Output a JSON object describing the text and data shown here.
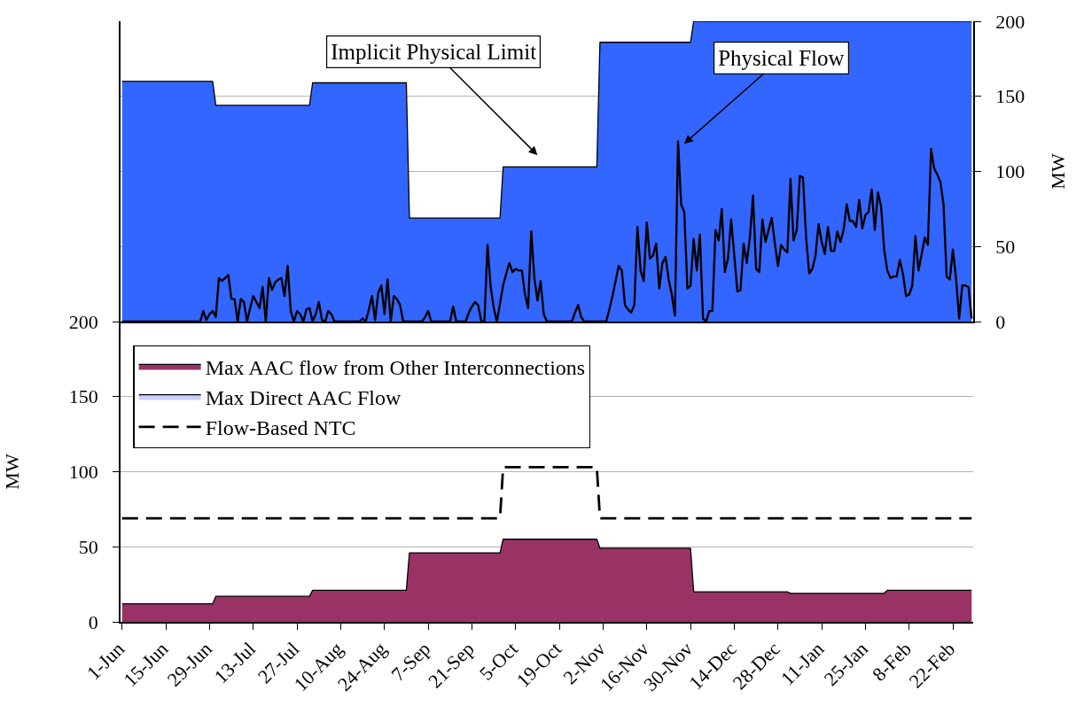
{
  "chart_data": [
    {
      "type": "area",
      "categories": [
        null,
        null,
        null,
        null,
        null,
        null,
        null,
        null,
        null,
        null,
        null,
        null,
        null,
        null,
        null,
        null,
        null,
        null,
        null,
        null,
        null,
        null,
        null,
        null,
        null,
        null,
        null,
        null,
        null,
        null,
        null,
        null,
        null,
        null,
        null,
        null,
        null,
        null,
        null,
        null,
        null,
        null,
        null,
        null,
        null,
        null,
        null,
        null,
        null,
        null,
        null,
        null,
        null,
        null,
        null,
        null,
        null,
        null,
        null,
        null,
        null,
        null,
        null,
        null,
        null,
        null,
        null,
        null,
        null,
        null,
        null,
        null,
        null,
        null,
        null,
        null,
        null,
        null,
        null,
        null,
        null,
        null,
        null,
        null,
        null,
        null,
        null,
        null,
        null,
        null,
        null,
        null,
        null,
        null,
        null,
        null,
        null,
        null,
        null,
        null,
        null,
        null,
        null,
        null,
        null,
        null,
        null,
        null,
        null,
        null,
        null,
        null,
        null,
        null,
        null,
        null,
        null,
        null,
        null,
        null,
        null,
        null,
        null,
        null,
        null,
        null,
        null,
        null,
        null,
        null,
        null,
        null,
        null,
        null,
        null,
        null,
        null,
        null,
        null,
        null,
        null,
        null,
        null,
        null,
        null,
        null,
        null,
        null,
        null,
        null,
        null,
        null,
        null,
        null,
        null,
        null,
        null,
        null,
        null,
        null,
        null,
        null,
        null,
        null,
        null,
        null,
        null,
        null,
        null,
        null,
        null,
        null,
        null,
        null,
        null,
        null,
        null,
        null,
        null,
        null,
        null,
        null,
        null,
        null,
        null,
        null,
        null,
        null,
        null,
        null,
        null,
        null,
        null,
        null,
        null,
        null,
        null,
        null,
        null,
        null,
        null,
        null,
        null,
        null,
        null,
        null,
        null,
        null,
        null,
        null,
        null,
        null,
        null,
        null,
        null,
        null,
        null,
        null,
        null,
        null,
        null,
        null,
        null,
        null,
        null,
        null,
        null,
        null,
        null,
        null,
        null,
        null,
        null,
        null,
        null,
        null,
        null,
        null,
        null,
        null,
        null,
        null,
        null,
        null,
        null,
        null,
        null,
        null,
        null,
        null,
        null,
        null,
        null,
        null,
        null,
        null,
        null,
        null,
        null,
        null,
        null,
        null,
        null,
        null,
        null,
        null,
        null,
        null,
        null,
        null,
        null,
        null,
        null
      ],
      "ylim": [
        0,
        200
      ],
      "yticks": [
        0,
        50,
        100,
        150,
        200
      ],
      "ylabel": "MW",
      "grid": "y",
      "series": [
        {
          "color": "#3366ff",
          "values": [
            160,
            160,
            160,
            160,
            160,
            160,
            160,
            160,
            160,
            160,
            160,
            160,
            160,
            160,
            160,
            160,
            160,
            160,
            160,
            160,
            160,
            160,
            160,
            160,
            160,
            160,
            160,
            160,
            160,
            160,
            144,
            144,
            144,
            144,
            144,
            144,
            144,
            144,
            144,
            144,
            144,
            144,
            144,
            144,
            144,
            144,
            144,
            144,
            144,
            144,
            144,
            144,
            144,
            144,
            144,
            144,
            144,
            144,
            144,
            144,
            144,
            159,
            159,
            159,
            159,
            159,
            159,
            159,
            159,
            159,
            159,
            159,
            159,
            159,
            159,
            159,
            159,
            159,
            159,
            159,
            159,
            159,
            159,
            159,
            159,
            159,
            159,
            159,
            159,
            159,
            159,
            159,
            69,
            69,
            69,
            69,
            69,
            69,
            69,
            69,
            69,
            69,
            69,
            69,
            69,
            69,
            69,
            69,
            69,
            69,
            69,
            69,
            69,
            69,
            69,
            69,
            69,
            69,
            69,
            69,
            69,
            69,
            103,
            103,
            103,
            103,
            103,
            103,
            103,
            103,
            103,
            103,
            103,
            103,
            103,
            103,
            103,
            103,
            103,
            103,
            103,
            103,
            103,
            103,
            103,
            103,
            103,
            103,
            103,
            103,
            103,
            103,
            103,
            186,
            186,
            186,
            186,
            186,
            186,
            186,
            186,
            186,
            186,
            186,
            186,
            186,
            186,
            186,
            186,
            186,
            186,
            186,
            186,
            186,
            186,
            186,
            186,
            186,
            186,
            186,
            186,
            186,
            186,
            200,
            200,
            200,
            200,
            200,
            200,
            200,
            200,
            200,
            200,
            200,
            200,
            200,
            200,
            200,
            200,
            200,
            200,
            200,
            200,
            200,
            200,
            200,
            200,
            200,
            200,
            200,
            200,
            200,
            200,
            200,
            200,
            200,
            200,
            200,
            200,
            200,
            200,
            200,
            200,
            200,
            200,
            200,
            200,
            200,
            200,
            200,
            200,
            200,
            200,
            200,
            200,
            200,
            200,
            200,
            200,
            200,
            200,
            200,
            200,
            200,
            200,
            200,
            200,
            200,
            200,
            200,
            200,
            200,
            200,
            200,
            200,
            200,
            200,
            200,
            200,
            200,
            200,
            200,
            200,
            200,
            200,
            200,
            200,
            200,
            200,
            200,
            200,
            200,
            200
          ]
        },
        {
          "type": "line",
          "color": "#000000",
          "values": [
            0,
            0,
            0,
            0,
            0,
            0,
            0,
            0,
            0,
            0,
            0,
            0,
            0,
            0,
            0,
            0,
            0,
            0,
            0,
            0,
            0,
            0,
            0,
            0,
            0,
            0,
            7,
            1,
            5,
            7,
            3,
            29,
            27,
            29,
            31,
            15,
            15,
            0,
            15,
            13,
            0,
            9,
            17,
            13,
            9,
            23,
            0,
            29,
            21,
            26,
            28,
            29,
            17,
            37,
            7,
            0,
            7,
            5,
            0,
            8,
            9,
            0,
            5,
            13,
            1,
            0,
            7,
            5,
            0,
            0,
            0,
            0,
            0,
            0,
            0,
            0,
            0,
            2,
            0,
            8,
            17,
            1,
            19,
            24,
            5,
            28,
            0,
            17,
            15,
            11,
            0,
            0,
            0,
            0,
            0,
            0,
            0,
            3,
            7,
            0,
            0,
            0,
            0,
            0,
            0,
            0,
            10,
            0,
            0,
            0,
            0,
            6,
            10,
            13,
            11,
            0,
            0,
            51,
            23,
            9,
            0,
            12,
            24,
            32,
            39,
            33,
            35,
            34,
            34,
            18,
            9,
            60,
            29,
            14,
            27,
            5,
            0,
            0,
            0,
            0,
            0,
            0,
            0,
            0,
            0,
            6,
            11,
            3,
            0,
            0,
            0,
            0,
            0,
            0,
            0,
            0,
            8,
            17,
            27,
            37,
            34,
            11,
            8,
            6,
            11,
            63,
            34,
            27,
            66,
            42,
            44,
            52,
            22,
            39,
            43,
            28,
            18,
            4,
            120,
            78,
            73,
            22,
            24,
            55,
            34,
            58,
            2,
            0,
            7,
            7,
            61,
            54,
            75,
            33,
            42,
            68,
            44,
            20,
            21,
            52,
            39,
            56,
            84,
            35,
            33,
            68,
            53,
            61,
            69,
            52,
            37,
            51,
            48,
            46,
            95,
            54,
            61,
            97,
            96,
            56,
            32,
            35,
            44,
            65,
            53,
            45,
            63,
            47,
            47,
            60,
            53,
            61,
            78,
            67,
            67,
            63,
            81,
            62,
            71,
            73,
            88,
            61,
            86,
            77,
            48,
            34,
            29,
            30,
            30,
            41,
            32,
            17,
            18,
            24,
            57,
            34,
            45,
            56,
            51,
            115,
            102,
            98,
            93,
            78,
            30,
            28,
            48,
            29,
            2,
            24,
            24,
            23,
            2
          ]
        }
      ],
      "annotations": [
        "Implicit Physical Limit",
        "Physical Flow"
      ]
    },
    {
      "type": "area",
      "categories": [
        "1-Jun",
        null,
        null,
        null,
        null,
        null,
        null,
        null,
        null,
        null,
        null,
        null,
        null,
        null,
        "15-Jun",
        null,
        null,
        null,
        null,
        null,
        null,
        null,
        null,
        null,
        null,
        null,
        null,
        null,
        "29-Jun",
        null,
        null,
        null,
        null,
        null,
        null,
        null,
        null,
        null,
        null,
        null,
        null,
        null,
        "13-Jul",
        null,
        null,
        null,
        null,
        null,
        null,
        null,
        null,
        null,
        null,
        null,
        null,
        null,
        "27-Jul",
        null,
        null,
        null,
        null,
        null,
        null,
        null,
        null,
        null,
        null,
        null,
        null,
        null,
        "10-Aug",
        null,
        null,
        null,
        null,
        null,
        null,
        null,
        null,
        null,
        null,
        null,
        null,
        null,
        "24-Aug",
        null,
        null,
        null,
        null,
        null,
        null,
        null,
        null,
        null,
        null,
        null,
        null,
        null,
        "7-Sep",
        null,
        null,
        null,
        null,
        null,
        null,
        null,
        null,
        null,
        null,
        null,
        null,
        null,
        "21-Sep",
        null,
        null,
        null,
        null,
        null,
        null,
        null,
        null,
        null,
        null,
        null,
        null,
        null,
        "5-Oct",
        null,
        null,
        null,
        null,
        null,
        null,
        null,
        null,
        null,
        null,
        null,
        null,
        null,
        "19-Oct",
        null,
        null,
        null,
        null,
        null,
        null,
        null,
        null,
        null,
        null,
        null,
        null,
        null,
        "2-Nov",
        null,
        null,
        null,
        null,
        null,
        null,
        null,
        null,
        null,
        null,
        null,
        null,
        null,
        "16-Nov",
        null,
        null,
        null,
        null,
        null,
        null,
        null,
        null,
        null,
        null,
        null,
        null,
        null,
        "30-Nov",
        null,
        null,
        null,
        null,
        null,
        null,
        null,
        null,
        null,
        null,
        null,
        null,
        null,
        "14-Dec",
        null,
        null,
        null,
        null,
        null,
        null,
        null,
        null,
        null,
        null,
        null,
        null,
        null,
        "28-Dec",
        null,
        null,
        null,
        null,
        null,
        null,
        null,
        null,
        null,
        null,
        null,
        null,
        null,
        "11-Jan",
        null,
        null,
        null,
        null,
        null,
        null,
        null,
        null,
        null,
        null,
        null,
        null,
        null,
        "25-Jan",
        null,
        null,
        null,
        null,
        null,
        null,
        null,
        null,
        null,
        null,
        null,
        null,
        null,
        "8-Feb",
        null,
        null,
        null,
        null,
        null,
        null,
        null,
        null,
        null,
        null,
        null,
        null,
        null,
        "22-Feb",
        null,
        null,
        null,
        null,
        null,
        null
      ],
      "ylim": [
        0,
        200
      ],
      "yticks": [
        0,
        50,
        100,
        150,
        200
      ],
      "ylabel": "MW",
      "grid": "y",
      "legend": "top left",
      "series": [
        {
          "name": "Max AAC flow from Other Interconnections",
          "color": "#993366",
          "values": [
            12,
            12,
            12,
            12,
            12,
            12,
            12,
            12,
            12,
            12,
            12,
            12,
            12,
            12,
            12,
            12,
            12,
            12,
            12,
            12,
            12,
            12,
            12,
            12,
            12,
            12,
            12,
            12,
            12,
            12,
            17,
            17,
            17,
            17,
            17,
            17,
            17,
            17,
            17,
            17,
            17,
            17,
            17,
            17,
            17,
            17,
            17,
            17,
            17,
            17,
            17,
            17,
            17,
            17,
            17,
            17,
            17,
            17,
            17,
            17,
            17,
            21,
            21,
            21,
            21,
            21,
            21,
            21,
            21,
            21,
            21,
            21,
            21,
            21,
            21,
            21,
            21,
            21,
            21,
            21,
            21,
            21,
            21,
            21,
            21,
            21,
            21,
            21,
            21,
            21,
            21,
            21,
            46,
            46,
            46,
            46,
            46,
            46,
            46,
            46,
            46,
            46,
            46,
            46,
            46,
            46,
            46,
            46,
            46,
            46,
            46,
            46,
            46,
            46,
            46,
            46,
            46,
            46,
            46,
            46,
            46,
            46,
            55,
            55,
            55,
            55,
            55,
            55,
            55,
            55,
            55,
            55,
            55,
            55,
            55,
            55,
            55,
            55,
            55,
            55,
            55,
            55,
            55,
            55,
            55,
            55,
            55,
            55,
            55,
            55,
            55,
            55,
            55,
            49,
            49,
            49,
            49,
            49,
            49,
            49,
            49,
            49,
            49,
            49,
            49,
            49,
            49,
            49,
            49,
            49,
            49,
            49,
            49,
            49,
            49,
            49,
            49,
            49,
            49,
            49,
            49,
            49,
            49,
            20,
            20,
            20,
            20,
            20,
            20,
            20,
            20,
            20,
            20,
            20,
            20,
            20,
            20,
            20,
            20,
            20,
            20,
            20,
            20,
            20,
            20,
            20,
            20,
            20,
            20,
            20,
            20,
            20,
            20,
            20,
            19,
            19,
            19,
            19,
            19,
            19,
            19,
            19,
            19,
            19,
            19,
            19,
            19,
            19,
            19,
            19,
            19,
            19,
            19,
            19,
            19,
            19,
            19,
            19,
            19,
            19,
            19,
            19,
            19,
            19,
            19,
            21,
            21,
            21,
            21,
            21,
            21,
            21,
            21,
            21,
            21,
            21,
            21,
            21,
            21,
            21,
            21,
            21,
            21,
            21,
            21,
            21,
            21,
            21,
            21,
            21,
            21,
            21,
            21
          ]
        },
        {
          "name": "Max Direct AAC Flow",
          "color": "#ccccff",
          "values": [
            null,
            null,
            null,
            null,
            null,
            null,
            null,
            null,
            null,
            null,
            null,
            null,
            null,
            null,
            null,
            null,
            null,
            null,
            null,
            null,
            null,
            null,
            null,
            null,
            null,
            null,
            null,
            null,
            null,
            null,
            null,
            null,
            null,
            null,
            null,
            null,
            null,
            null,
            null,
            null,
            null,
            null,
            null,
            null,
            null,
            null,
            null,
            null,
            null,
            null,
            null,
            null,
            null,
            null,
            null,
            null,
            null,
            null,
            null,
            null,
            null,
            null,
            null,
            null,
            null,
            null,
            null,
            null,
            null,
            null,
            null,
            null,
            null,
            null,
            null,
            null,
            null,
            null,
            null,
            null,
            null,
            null,
            null,
            null,
            null,
            null,
            null,
            null,
            null,
            null,
            null,
            null,
            null,
            null,
            null,
            null,
            null,
            null,
            null,
            null,
            null,
            null,
            null,
            null,
            null,
            null,
            null,
            null,
            null,
            null,
            null,
            null,
            null,
            null,
            null,
            null,
            null,
            null,
            null,
            null,
            null,
            null,
            null,
            null,
            null,
            null,
            null,
            null,
            null,
            null,
            null,
            null,
            null,
            null,
            null,
            null,
            null,
            null,
            null,
            null,
            null,
            null,
            null,
            null,
            null,
            null,
            null,
            null,
            null,
            null,
            null,
            null,
            null,
            null,
            null,
            null,
            null,
            null,
            null,
            null,
            null,
            null,
            null,
            null,
            null,
            null,
            null,
            null,
            null,
            null,
            null,
            null,
            null,
            null,
            null,
            null,
            null,
            null,
            null,
            null,
            null,
            null,
            null,
            null,
            null,
            null,
            null,
            null,
            null,
            null,
            null,
            null,
            null,
            null,
            null,
            null,
            null,
            null,
            null,
            null,
            null,
            null,
            null,
            null,
            null,
            null,
            null,
            null,
            null,
            null,
            null,
            null,
            null,
            null,
            null,
            null,
            null,
            null,
            null,
            null,
            null,
            null,
            null,
            null,
            null,
            null,
            null,
            null,
            null,
            null,
            null,
            null,
            null,
            null,
            null,
            null,
            null,
            null,
            null,
            null,
            null,
            null,
            null,
            null,
            null,
            null,
            null,
            null,
            null,
            null,
            null,
            null,
            null,
            null,
            null,
            null,
            null,
            null,
            null,
            null,
            null,
            null,
            null,
            null,
            null,
            null,
            null,
            null,
            null,
            null,
            null,
            null,
            null
          ]
        },
        {
          "name": "Flow-Based NTC",
          "type": "line",
          "color": "#000000",
          "line_style": "dashed",
          "values": [
            69,
            69,
            69,
            69,
            69,
            69,
            69,
            69,
            69,
            69,
            69,
            69,
            69,
            69,
            69,
            69,
            69,
            69,
            69,
            69,
            69,
            69,
            69,
            69,
            69,
            69,
            69,
            69,
            69,
            69,
            69,
            69,
            69,
            69,
            69,
            69,
            69,
            69,
            69,
            69,
            69,
            69,
            69,
            69,
            69,
            69,
            69,
            69,
            69,
            69,
            69,
            69,
            69,
            69,
            69,
            69,
            69,
            69,
            69,
            69,
            69,
            69,
            69,
            69,
            69,
            69,
            69,
            69,
            69,
            69,
            69,
            69,
            69,
            69,
            69,
            69,
            69,
            69,
            69,
            69,
            69,
            69,
            69,
            69,
            69,
            69,
            69,
            69,
            69,
            69,
            69,
            69,
            69,
            69,
            69,
            69,
            69,
            69,
            69,
            69,
            69,
            69,
            69,
            69,
            69,
            69,
            69,
            69,
            69,
            69,
            69,
            69,
            69,
            69,
            69,
            69,
            69,
            69,
            69,
            69,
            69,
            69,
            103,
            103,
            103,
            103,
            103,
            103,
            103,
            103,
            103,
            103,
            103,
            103,
            103,
            103,
            103,
            103,
            103,
            103,
            103,
            103,
            103,
            103,
            103,
            103,
            103,
            103,
            103,
            103,
            103,
            103,
            103,
            69,
            69,
            69,
            69,
            69,
            69,
            69,
            69,
            69,
            69,
            69,
            69,
            69,
            69,
            69,
            69,
            69,
            69,
            69,
            69,
            69,
            69,
            69,
            69,
            69,
            69,
            69,
            69,
            69,
            69,
            69,
            69,
            69,
            69,
            69,
            69,
            69,
            69,
            69,
            69,
            69,
            69,
            69,
            69,
            69,
            69,
            69,
            69,
            69,
            69,
            69,
            69,
            69,
            69,
            69,
            69,
            69,
            69,
            69,
            69,
            69,
            69,
            69,
            69,
            69,
            69,
            69,
            69,
            69,
            69,
            69,
            69,
            69,
            69,
            69,
            69,
            69,
            69,
            69,
            69,
            69,
            69,
            69,
            69,
            69,
            69,
            69,
            69,
            69,
            69,
            69,
            69,
            69,
            69,
            69,
            69,
            69,
            69,
            69,
            69,
            69,
            69,
            69,
            69,
            69,
            69,
            69,
            69,
            69,
            69,
            69,
            69,
            69,
            69,
            69,
            69,
            69,
            69,
            69,
            69
          ]
        }
      ]
    }
  ]
}
